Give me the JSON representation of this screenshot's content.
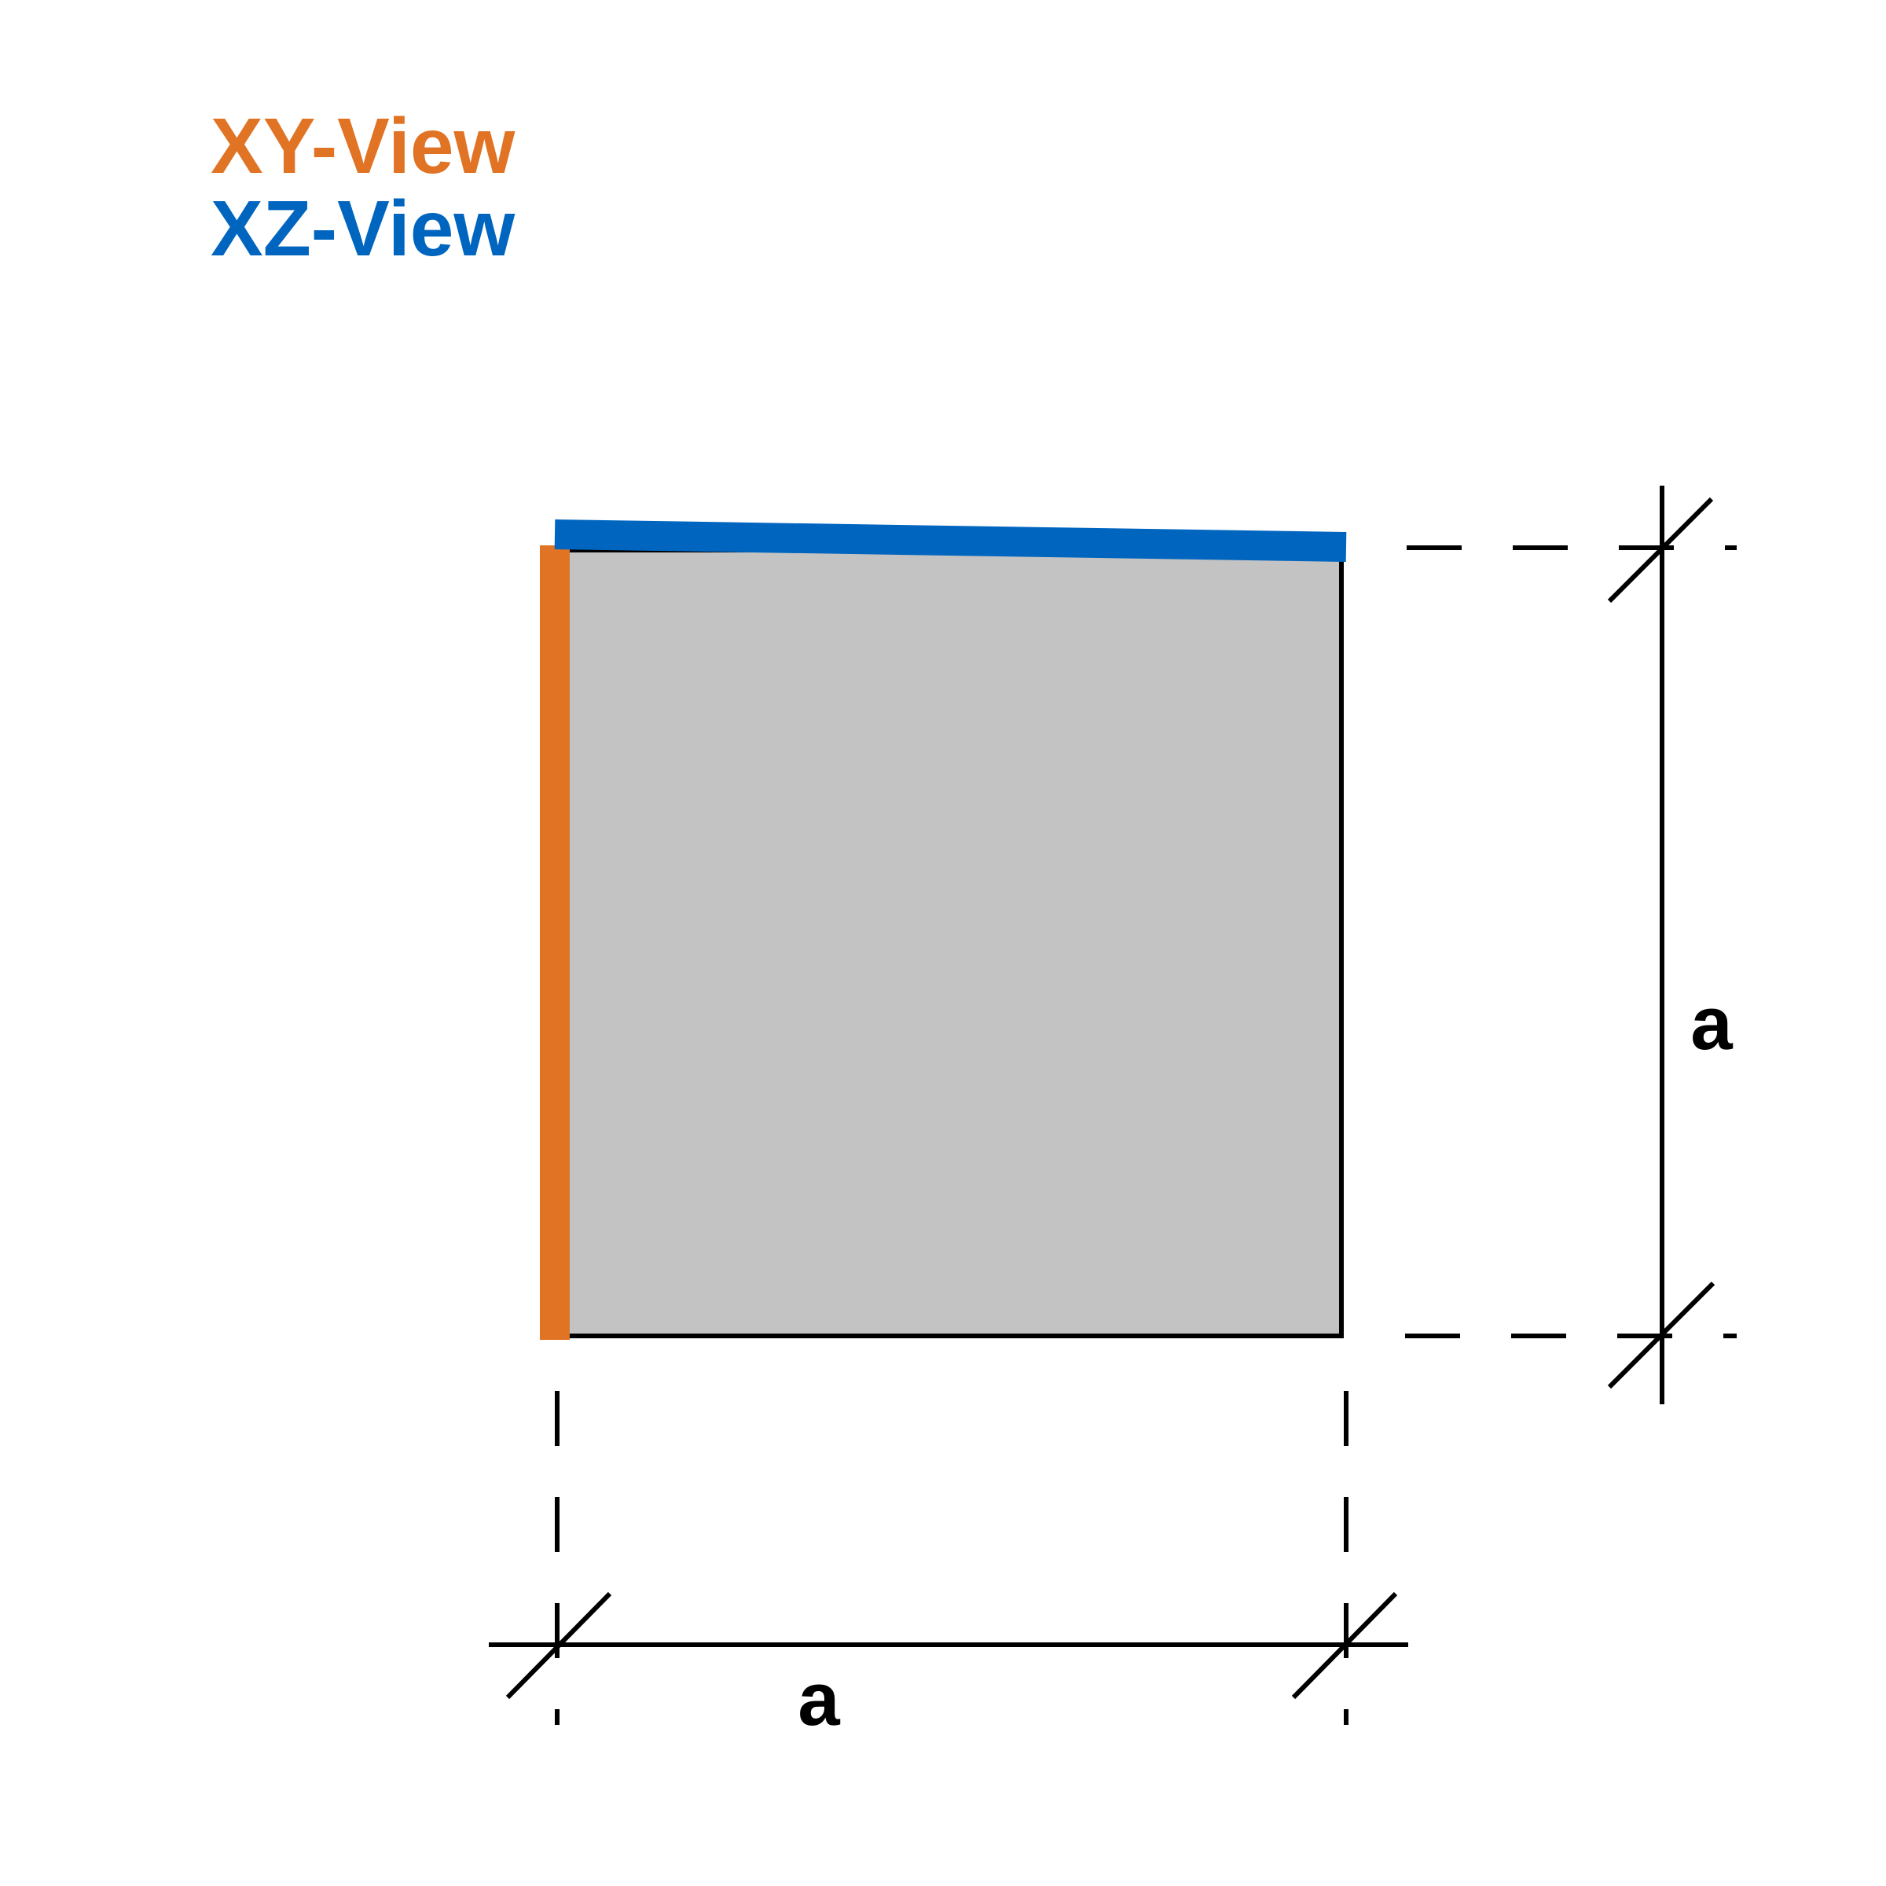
{
  "legend": {
    "xy_label": "XY-View",
    "xz_label": "XZ-View"
  },
  "dimensions": {
    "horizontal_label": "a",
    "vertical_label": "a"
  },
  "colors": {
    "xy_view": "#E07324",
    "xz_view": "#0065BF",
    "fill": "#C3C3C3",
    "line": "#000000",
    "background": "#FFFFFF"
  }
}
